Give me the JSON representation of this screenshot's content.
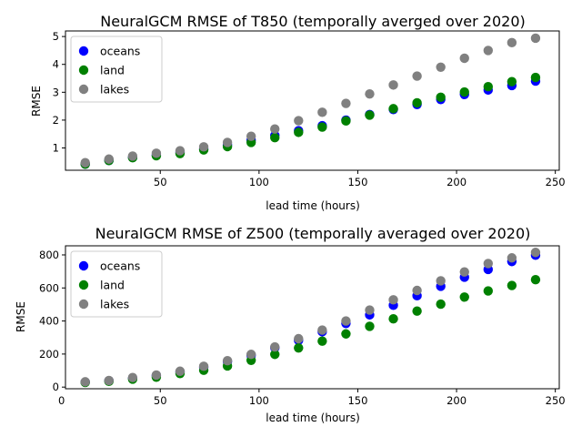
{
  "chart_data": [
    {
      "type": "scatter",
      "title": "NeuralGCM RMSE of T850 (temporally averged over 2020)",
      "xlabel": "lead time (hours)",
      "ylabel": "RMSE",
      "xlim": [
        2,
        252
      ],
      "ylim": [
        0.2,
        5.2
      ],
      "xticks": [
        50,
        100,
        150,
        200,
        250
      ],
      "yticks": [
        1,
        2,
        3,
        4,
        5
      ],
      "legend": "upper-left",
      "x": [
        12,
        24,
        36,
        48,
        60,
        72,
        84,
        96,
        108,
        120,
        132,
        144,
        156,
        168,
        180,
        192,
        204,
        216,
        228,
        240
      ],
      "series": [
        {
          "name": "oceans",
          "color": "#0000ff",
          "values": [
            0.42,
            0.55,
            0.66,
            0.75,
            0.85,
            0.98,
            1.11,
            1.28,
            1.45,
            1.62,
            1.8,
            2.0,
            2.2,
            2.38,
            2.56,
            2.74,
            2.92,
            3.08,
            3.24,
            3.4
          ]
        },
        {
          "name": "land",
          "color": "#008000",
          "values": [
            0.42,
            0.55,
            0.65,
            0.72,
            0.8,
            0.93,
            1.05,
            1.2,
            1.37,
            1.56,
            1.75,
            1.97,
            2.18,
            2.41,
            2.62,
            2.82,
            3.01,
            3.2,
            3.38,
            3.53
          ]
        },
        {
          "name": "lakes",
          "color": "#808080",
          "values": [
            0.47,
            0.6,
            0.71,
            0.81,
            0.9,
            1.04,
            1.2,
            1.42,
            1.68,
            1.98,
            2.28,
            2.6,
            2.94,
            3.26,
            3.58,
            3.9,
            4.22,
            4.5,
            4.78,
            4.94
          ]
        }
      ]
    },
    {
      "type": "scatter",
      "title": "NeuralGCM RMSE of Z500 (temporally averaged over 2020)",
      "xlabel": "lead time (hours)",
      "ylabel": "RMSE",
      "xlim": [
        2,
        252
      ],
      "ylim": [
        -10,
        855
      ],
      "xticks": [
        0,
        50,
        100,
        150,
        200,
        250
      ],
      "yticks": [
        0,
        200,
        400,
        600,
        800
      ],
      "legend": "upper-left",
      "x": [
        12,
        24,
        36,
        48,
        60,
        72,
        84,
        96,
        108,
        120,
        132,
        144,
        156,
        168,
        180,
        192,
        204,
        216,
        228,
        240
      ],
      "series": [
        {
          "name": "oceans",
          "color": "#0000ff",
          "values": [
            30,
            38,
            55,
            70,
            92,
            120,
            155,
            192,
            238,
            283,
            335,
            385,
            437,
            495,
            553,
            610,
            665,
            712,
            760,
            798
          ]
        },
        {
          "name": "land",
          "color": "#008000",
          "values": [
            28,
            35,
            48,
            60,
            82,
            102,
            128,
            162,
            198,
            237,
            278,
            322,
            368,
            413,
            460,
            502,
            545,
            582,
            615,
            650
          ]
        },
        {
          "name": "lakes",
          "color": "#808080",
          "values": [
            32,
            40,
            58,
            73,
            96,
            126,
            160,
            198,
            243,
            293,
            345,
            400,
            466,
            528,
            585,
            643,
            697,
            748,
            782,
            815
          ]
        }
      ]
    }
  ]
}
